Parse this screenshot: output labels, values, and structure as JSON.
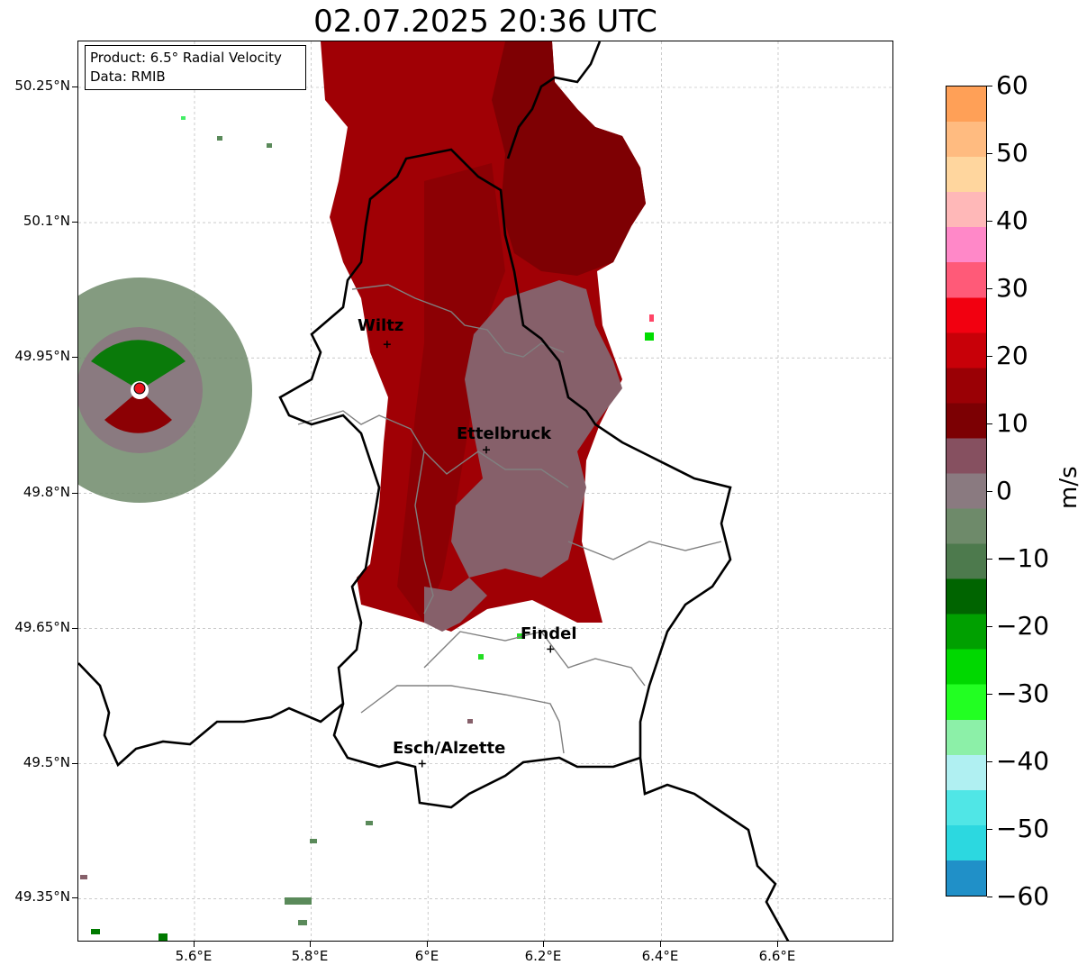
{
  "title": "02.07.2025 20:36 UTC",
  "info": {
    "product": "Product: 6.5° Radial Velocity",
    "source": "Data: RMIB"
  },
  "lat_labels": [
    "50.25°N",
    "50.1°N",
    "49.95°N",
    "49.8°N",
    "49.65°N",
    "49.5°N",
    "49.35°N"
  ],
  "lon_labels": [
    "5.6°E",
    "5.8°E",
    "6°E",
    "6.2°E",
    "6.4°E",
    "6.6°E"
  ],
  "cities": [
    {
      "name": "Wiltz",
      "lon": 5.93,
      "lat": 49.965
    },
    {
      "name": "Ettelbruck",
      "lon": 6.1,
      "lat": 49.848
    },
    {
      "name": "Findel",
      "lon": 6.21,
      "lat": 49.627
    },
    {
      "name": "Esch/Alzette",
      "lon": 5.99,
      "lat": 49.5
    }
  ],
  "radar_site": {
    "lon": 5.505,
    "lat": 49.914,
    "marker_color": "#e8141b"
  },
  "colorbar": {
    "unit": "m/s",
    "labels": [
      "60",
      "50",
      "40",
      "30",
      "20",
      "10",
      "0",
      "−10",
      "−20",
      "−30",
      "−40",
      "−50",
      "−60"
    ],
    "range": [
      -60,
      60
    ],
    "colors_top_to_bottom": [
      "#ffa057",
      "#ffbb80",
      "#ffd69e",
      "#ffb8b8",
      "#ff88c8",
      "#ff5a78",
      "#f20010",
      "#c80008",
      "#9a0005",
      "#7c0003",
      "#865060",
      "#8a7a80",
      "#6e8a6a",
      "#4d7a4d",
      "#006400",
      "#00a000",
      "#00d800",
      "#22ff22",
      "#8cf0a8",
      "#b0f0f2",
      "#50e6e6",
      "#2cd8e0",
      "#2090c8"
    ]
  },
  "map_colors": {
    "inbound_dark": "#7e0003",
    "inbound_mid": "#a80005",
    "near_zero": "#86606a",
    "outbound": "#5a8a5a",
    "green": "#078707",
    "border": "#000000",
    "canton": "#808080"
  }
}
